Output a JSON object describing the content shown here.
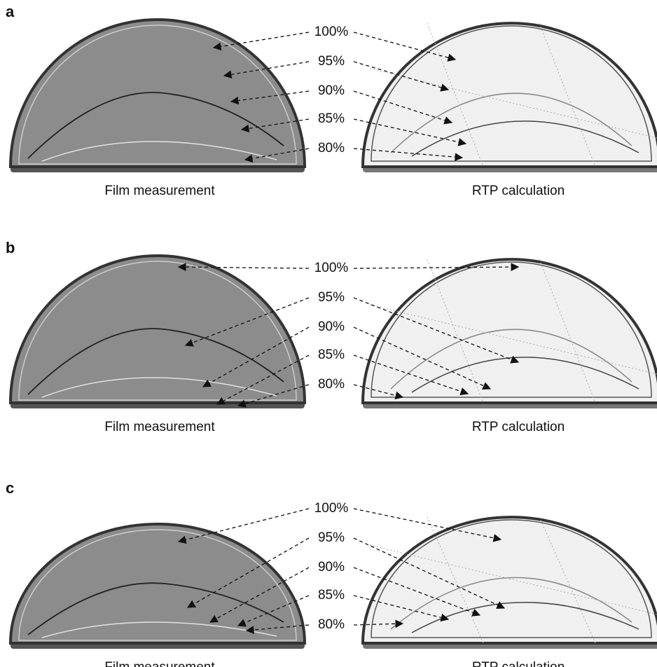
{
  "panels": [
    {
      "label": "a",
      "levels": [
        "100%",
        "95%",
        "90%",
        "85%",
        "80%"
      ],
      "left_caption": "Film measurement",
      "right_caption": "RTP calculation"
    },
    {
      "label": "b",
      "levels": [
        "100%",
        "95%",
        "90%",
        "85%",
        "80%"
      ],
      "left_caption": "Film measurement",
      "right_caption": "RTP calculation"
    },
    {
      "label": "c",
      "levels": [
        "100%",
        "95%",
        "90%",
        "85%",
        "80%"
      ],
      "left_caption": "Film measurement",
      "right_caption": "RTP calculation"
    }
  ]
}
